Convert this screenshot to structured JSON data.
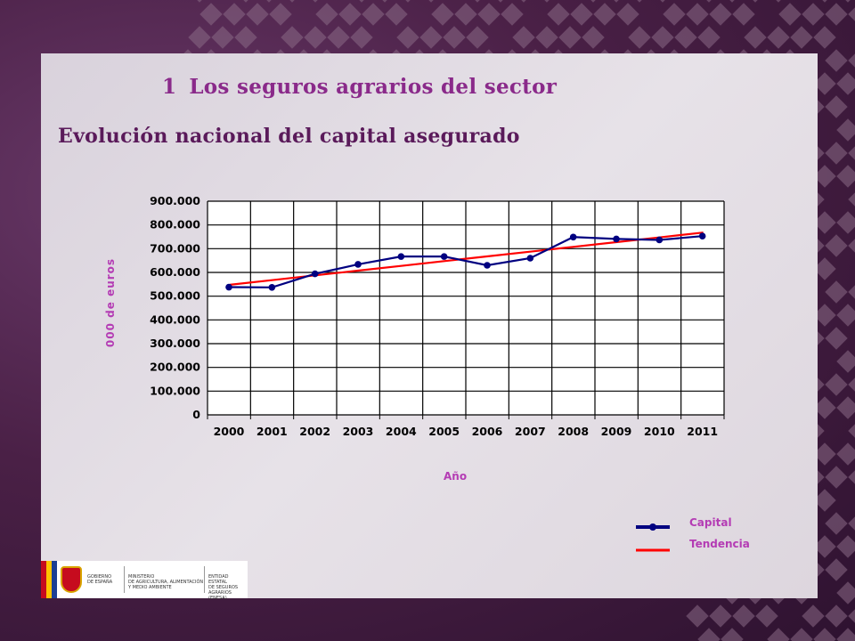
{
  "header": {
    "section_number": "1",
    "section_title": "Los seguros agrarios del sector"
  },
  "chart_title": "Evolución nacional del capital asegurado",
  "chart_data": {
    "type": "line",
    "title": "Evolución nacional del capital asegurado",
    "xlabel": "Año",
    "ylabel": "000 de euros",
    "categories": [
      "2000",
      "2001",
      "2002",
      "2003",
      "2004",
      "2005",
      "2006",
      "2007",
      "2008",
      "2009",
      "2010",
      "2011"
    ],
    "ylim": [
      0,
      900000
    ],
    "yticks": [
      0,
      100000,
      200000,
      300000,
      400000,
      500000,
      600000,
      700000,
      800000,
      900000
    ],
    "ytick_labels": [
      "0",
      "100.000",
      "200.000",
      "300.000",
      "400.000",
      "500.000",
      "600.000",
      "700.000",
      "800.000",
      "900.000"
    ],
    "grid": true,
    "legend_position": "bottom-right",
    "series": [
      {
        "name": "Capital",
        "color": "#000080",
        "marker": "circle",
        "values": [
          538000,
          537000,
          594000,
          634000,
          667000,
          667000,
          630000,
          660000,
          749000,
          741000,
          737000,
          753000
        ]
      },
      {
        "name": "Tendencia",
        "color": "#ff0000",
        "marker": "none",
        "values": [
          548000,
          568000,
          588000,
          608000,
          628000,
          648000,
          668000,
          688000,
          708000,
          728000,
          748000,
          768000
        ]
      }
    ]
  },
  "logos": {
    "gobierno": "GOBIERNO\nDE ESPAÑA",
    "ministerio": "MINISTERIO\nDE AGRICULTURA, ALIMENTACIÓN\nY MEDIO AMBIENTE",
    "entidad": "ENTIDAD ESTATAL\nDE SEGUROS\nAGRARIOS (ENESA)"
  }
}
